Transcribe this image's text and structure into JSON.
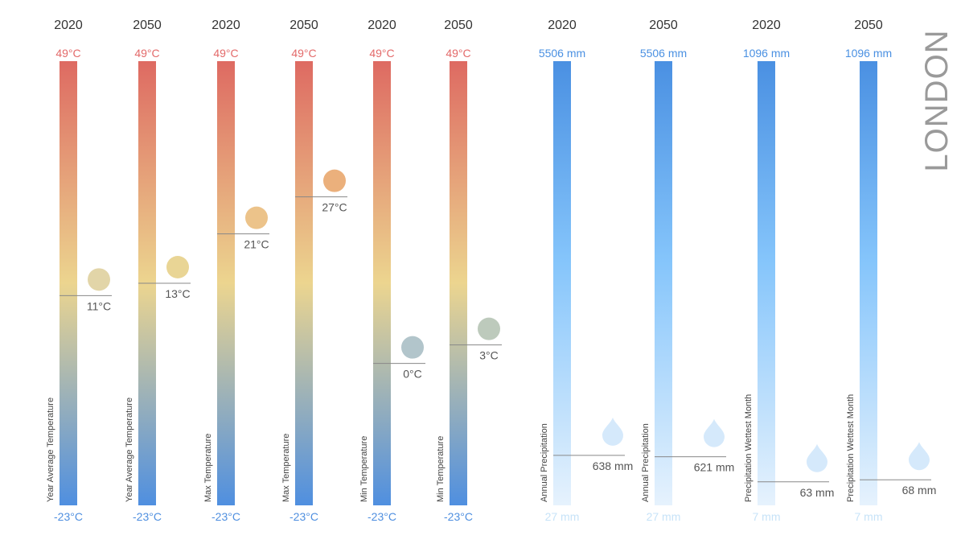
{
  "city": "LONDON",
  "colors": {
    "temp_top": "#de6a62",
    "temp_mid": "#ecd58f",
    "temp_bottom": "#4f8fe0",
    "precip_top": "#4a90e2",
    "precip_mid": "#85c5fb",
    "precip_bottom": "#e6f2fd",
    "temp_max_label": "#e36a6a",
    "temp_min_label": "#4f8fe0",
    "precip_max_label": "#4a90e2",
    "precip_min_label": "#c7e3f8",
    "year_label": "#333333",
    "value_label": "#555555",
    "marker_line": "#888888",
    "city_label": "#9a9a9a"
  },
  "chart_data": {
    "type": "bar",
    "columns": [
      {
        "year": "2020",
        "metric": "Year Average Temperature",
        "kind": "temp",
        "value": 11,
        "value_label": "11°C",
        "max_label": "49°C",
        "min_label": "-23°C",
        "range": [
          -23,
          49
        ],
        "marker_color": "#e2d5a8"
      },
      {
        "year": "2050",
        "metric": "Year Average Temperature",
        "kind": "temp",
        "value": 13,
        "value_label": "13°C",
        "max_label": "49°C",
        "min_label": "-23°C",
        "range": [
          -23,
          49
        ],
        "marker_color": "#e9d595"
      },
      {
        "year": "2020",
        "metric": "Max Temperature",
        "kind": "temp",
        "value": 21,
        "value_label": "21°C",
        "max_label": "49°C",
        "min_label": "-23°C",
        "range": [
          -23,
          49
        ],
        "marker_color": "#ecc38a"
      },
      {
        "year": "2050",
        "metric": "Max Temperature",
        "kind": "temp",
        "value": 27,
        "value_label": "27°C",
        "max_label": "49°C",
        "min_label": "-23°C",
        "range": [
          -23,
          49
        ],
        "marker_color": "#ebb07c"
      },
      {
        "year": "2020",
        "metric": "Min Temperature",
        "kind": "temp",
        "value": 0,
        "value_label": "0°C",
        "max_label": "49°C",
        "min_label": "-23°C",
        "range": [
          -23,
          49
        ],
        "marker_color": "#b2c5cb"
      },
      {
        "year": "2050",
        "metric": "Min Temperature",
        "kind": "temp",
        "value": 3,
        "value_label": "3°C",
        "max_label": "49°C",
        "min_label": "-23°C",
        "range": [
          -23,
          49
        ],
        "marker_color": "#bdcabc"
      },
      {
        "year": "2020",
        "metric": "Annual Precipitation",
        "kind": "precip",
        "value": 638,
        "value_label": "638 mm",
        "max_label": "5506 mm",
        "min_label": "27 mm",
        "range": [
          27,
          5506
        ],
        "marker_color": "#d5e9fb"
      },
      {
        "year": "2050",
        "metric": "Annual Precipitation",
        "kind": "precip",
        "value": 621,
        "value_label": "621 mm",
        "max_label": "5506 mm",
        "min_label": "27 mm",
        "range": [
          27,
          5506
        ],
        "marker_color": "#d5e9fb"
      },
      {
        "year": "2020",
        "metric": "Precipitation Wettest Month",
        "kind": "precip",
        "value": 63,
        "value_label": "63 mm",
        "max_label": "1096 mm",
        "min_label": "7 mm",
        "range": [
          7,
          1096
        ],
        "marker_color": "#d5e9fb"
      },
      {
        "year": "2050",
        "metric": "Precipitation Wettest Month",
        "kind": "precip",
        "value": 68,
        "value_label": "68 mm",
        "max_label": "1096 mm",
        "min_label": "7 mm",
        "range": [
          7,
          1096
        ],
        "marker_color": "#d5e9fb"
      }
    ]
  }
}
